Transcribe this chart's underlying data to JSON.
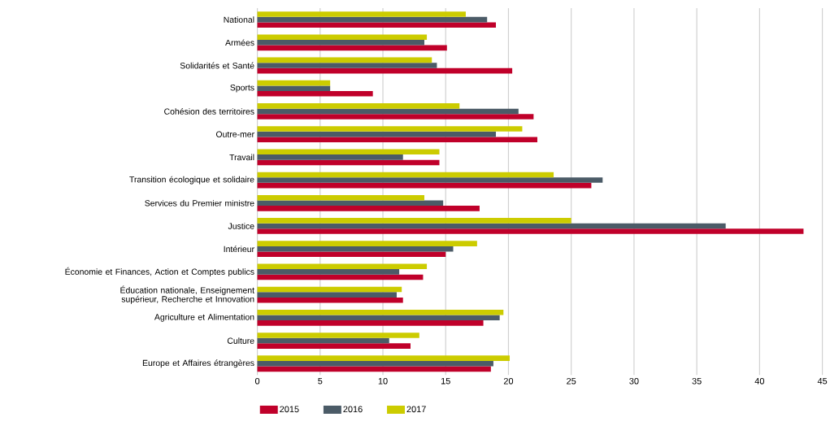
{
  "chart_data": {
    "type": "bar",
    "orientation": "horizontal",
    "categories": [
      "National",
      "Armées",
      "Solidarités et Santé",
      "Sports",
      "Cohésion des territoires",
      "Outre-mer",
      "Travail",
      "Transition écologique et solidaire",
      "Services du Premier ministre",
      "Justice",
      "Intérieur",
      "Économie et Finances, Action et Comptes publics",
      "Éducation nationale, Enseignement supérieur, Recherche et Innovation",
      "Agriculture et Alimentation",
      "Culture",
      "Europe et Affaires étrangères"
    ],
    "series": [
      {
        "name": "2015",
        "color": "#c0002a",
        "values": [
          19.0,
          15.1,
          20.3,
          9.2,
          22.0,
          22.3,
          14.5,
          26.6,
          17.7,
          43.5,
          15.0,
          13.2,
          11.6,
          18.0,
          12.2,
          18.6
        ]
      },
      {
        "name": "2016",
        "color": "#4b5b67",
        "values": [
          18.3,
          13.3,
          14.3,
          5.8,
          20.8,
          19.0,
          11.6,
          27.5,
          14.8,
          37.3,
          15.6,
          11.3,
          11.1,
          19.3,
          10.5,
          18.8
        ]
      },
      {
        "name": "2017",
        "color": "#cccc00",
        "values": [
          16.6,
          13.5,
          13.9,
          5.8,
          16.1,
          21.1,
          14.5,
          23.6,
          13.3,
          25.0,
          17.5,
          13.5,
          11.5,
          19.6,
          12.9,
          20.1
        ]
      }
    ],
    "xlim": [
      0,
      45
    ],
    "xticks": [
      0,
      5,
      10,
      15,
      20,
      25,
      30,
      35,
      40,
      45
    ],
    "grid": "x",
    "legend": "bottom"
  }
}
